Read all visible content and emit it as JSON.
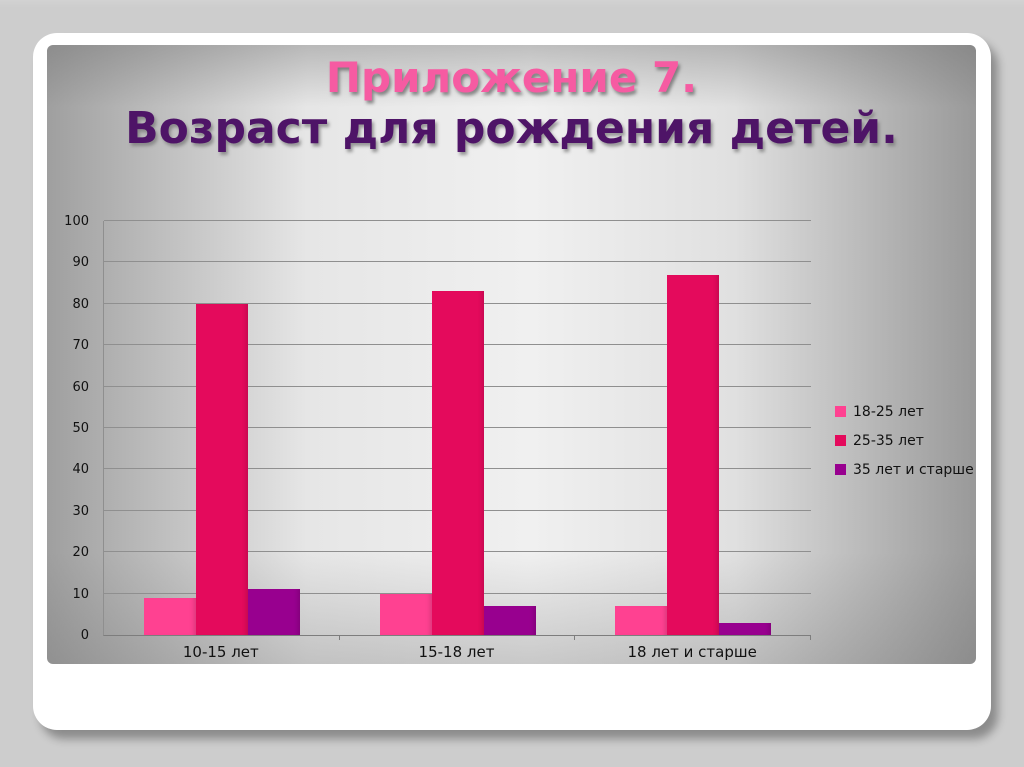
{
  "slide": {
    "title_line1": "Приложение 7.",
    "title_line2": "Возраст для рождения детей."
  },
  "colors": {
    "page_background": "#cdcdcd",
    "card_background": "#ffffff",
    "title_line1_color": "#f65ba2",
    "title_line2_color": "#4e1467",
    "gridline_color": "#8f8f8f",
    "axis_text_color": "#111111"
  },
  "chart_data": {
    "type": "bar",
    "title": "",
    "xlabel": "",
    "ylabel": "",
    "categories": [
      "10-15 лет",
      "15-18 лет",
      "18 лет и старше"
    ],
    "series": [
      {
        "name": "18-25 лет",
        "color": "#ff4191",
        "values": [
          9,
          10,
          7
        ]
      },
      {
        "name": "25-35 лет",
        "color": "#e40a5c",
        "values": [
          80,
          83,
          87
        ]
      },
      {
        "name": "35 лет и старше",
        "color": "#98008f",
        "values": [
          11,
          7,
          3
        ]
      }
    ],
    "ylim": [
      0,
      100
    ],
    "yticks": [
      0,
      10,
      20,
      30,
      40,
      50,
      60,
      70,
      80,
      90,
      100
    ],
    "grid": true,
    "legend_position": "middle-right"
  }
}
